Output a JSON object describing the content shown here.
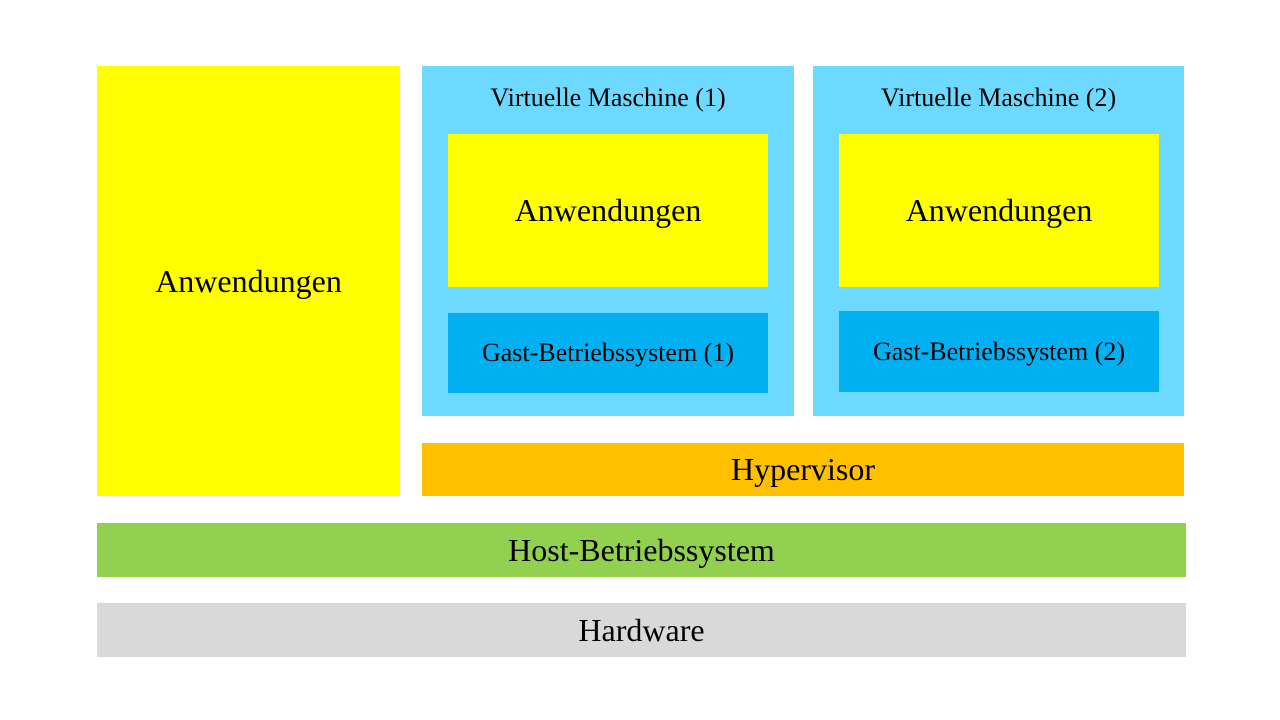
{
  "colors": {
    "applications": "#ffff00",
    "virtual_machine": "#6dd9ff",
    "guest_os": "#00b0f0",
    "hypervisor": "#ffc000",
    "host_os": "#92d050",
    "hardware": "#d9d9d9"
  },
  "host_applications": {
    "label": "Anwendungen"
  },
  "virtual_machines": [
    {
      "title": "Virtuelle Maschine (1)",
      "applications_label": "Anwendungen",
      "guest_os_label": "Gast-Betriebssystem (1)"
    },
    {
      "title": "Virtuelle Maschine (2)",
      "applications_label": "Anwendungen",
      "guest_os_label": "Gast-Betriebssystem (2)"
    }
  ],
  "hypervisor": {
    "label": "Hypervisor"
  },
  "host_os": {
    "label": "Host-Betriebssystem"
  },
  "hardware": {
    "label": "Hardware"
  }
}
